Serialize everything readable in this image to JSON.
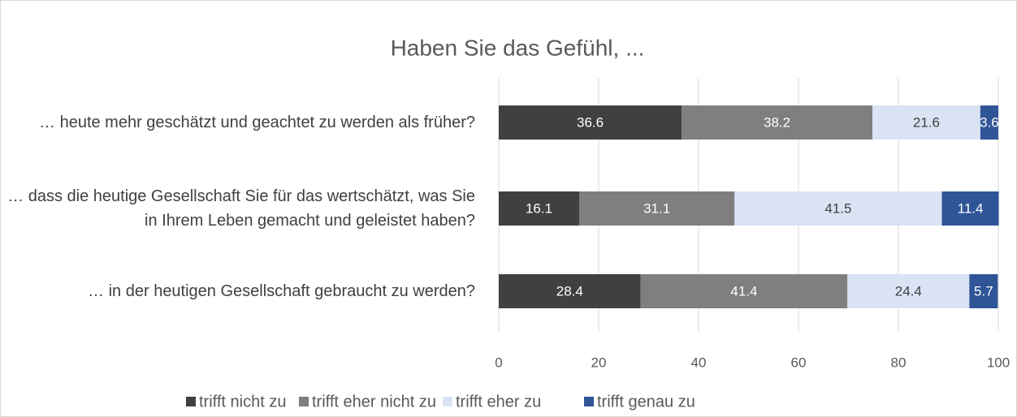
{
  "chart_data": {
    "type": "stacked_bar_horizontal",
    "title": "Haben Sie das Gefühl, ...",
    "categories": [
      "… heute mehr geschätzt und geachtet zu werden als früher?",
      "… dass die heutige Gesellschaft Sie für das wertschätzt, was Sie in Ihrem Leben gemacht und geleistet haben?",
      "… in der heutigen Gesellschaft gebraucht zu werden?"
    ],
    "series": [
      {
        "name": "trifft nicht zu",
        "color": "#404040",
        "values": [
          36.6,
          16.1,
          28.4
        ]
      },
      {
        "name": "trifft eher nicht zu",
        "color": "#7f7f7f",
        "values": [
          38.2,
          31.1,
          41.4
        ]
      },
      {
        "name": "trifft eher zu",
        "color": "#dae3f3",
        "values": [
          21.6,
          41.5,
          24.4
        ]
      },
      {
        "name": "trifft genau zu",
        "color": "#2f5597",
        "values": [
          3.6,
          11.4,
          5.7
        ]
      }
    ],
    "xlim": [
      0,
      100
    ],
    "xticks": [
      0,
      20,
      40,
      60,
      80,
      100
    ],
    "grid": true,
    "legend": "bottom"
  }
}
